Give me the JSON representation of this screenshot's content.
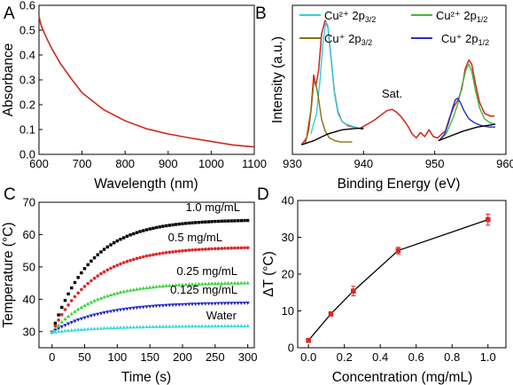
{
  "chart_data": [
    {
      "panel": "A",
      "type": "line",
      "xlabel": "Wavelength (nm)",
      "ylabel": "Absorbance",
      "xlim": [
        600,
        1100
      ],
      "ylim": [
        0.0,
        0.6
      ],
      "xticks": [
        600,
        700,
        800,
        900,
        1000,
        1100
      ],
      "yticks": [
        "0.0",
        "0.1",
        "0.2",
        "0.3",
        "0.4",
        "0.5",
        "0.6"
      ],
      "color": "#d0261c",
      "x": [
        600,
        605,
        612,
        620,
        630,
        650,
        675,
        700,
        750,
        800,
        850,
        900,
        950,
        1000,
        1050,
        1100
      ],
      "y": [
        0.555,
        0.52,
        0.49,
        0.46,
        0.425,
        0.365,
        0.305,
        0.248,
        0.18,
        0.135,
        0.103,
        0.082,
        0.066,
        0.052,
        0.038,
        0.03
      ]
    },
    {
      "panel": "B",
      "type": "line",
      "xlabel": "Binding Energy (eV)",
      "ylabel": "Intensity (a.u.)",
      "xlim": [
        930,
        960
      ],
      "xticks": [
        930,
        940,
        950,
        960
      ],
      "yticks": [],
      "legend_position": "top",
      "annotations": [
        {
          "text": "Sat.",
          "x": 944.5
        }
      ],
      "legend": [
        {
          "main": "Cu²⁺ 2p",
          "sub": "3/2",
          "color": "#2ad4dc"
        },
        {
          "main": "Cu²⁺ 2p",
          "sub": "1/2",
          "color": "#3dba3a"
        },
        {
          "main": "Cu⁺ 2p",
          "sub": "3/2",
          "color": "#8a6e10"
        },
        {
          "main": "Cu⁺ 2p",
          "sub": "1/2",
          "color": "#2330c8"
        }
      ],
      "curves": [
        {
          "role": "measured",
          "color": "#d0261c",
          "x": [
            931.3,
            932.0,
            932.6,
            933.0,
            933.3,
            933.7,
            934.1,
            934.6,
            935.0,
            935.4,
            935.9,
            936.4,
            937.0,
            937.8,
            938.6,
            939.5,
            940.5,
            941.5,
            942.5,
            943.3,
            944.0,
            944.6,
            945.2,
            945.8,
            946.3,
            946.8,
            947.4,
            948.0,
            948.6,
            949.2,
            949.8,
            950.4,
            951.0,
            951.5,
            952.1,
            952.7,
            953.3,
            953.8,
            954.3,
            954.8,
            955.2,
            955.7,
            956.3,
            957.0,
            957.8,
            958.4
          ],
          "y": [
            0.07,
            0.12,
            0.32,
            0.58,
            0.5,
            0.62,
            0.88,
            0.98,
            0.93,
            0.72,
            0.46,
            0.31,
            0.24,
            0.21,
            0.2,
            0.19,
            0.22,
            0.25,
            0.29,
            0.32,
            0.33,
            0.31,
            0.28,
            0.24,
            0.2,
            0.15,
            0.12,
            0.16,
            0.13,
            0.18,
            0.13,
            0.12,
            0.15,
            0.17,
            0.27,
            0.35,
            0.4,
            0.48,
            0.63,
            0.69,
            0.66,
            0.52,
            0.38,
            0.3,
            0.28,
            0.28
          ]
        },
        {
          "role": "Cu2+ 2p3/2",
          "color": "#2ad4dc",
          "x": [
            932.6,
            933.4,
            933.9,
            934.3,
            934.7,
            935.0,
            935.4,
            935.9,
            936.4,
            937.0,
            937.6,
            938.2,
            938.8,
            939.4,
            940.0
          ],
          "y": [
            0.15,
            0.3,
            0.55,
            0.82,
            0.97,
            0.94,
            0.72,
            0.45,
            0.3,
            0.24,
            0.22,
            0.21,
            0.2,
            0.19,
            0.18
          ]
        },
        {
          "role": "Cu+ 2p3/2",
          "color": "#8a6e10",
          "x": [
            931.8,
            932.3,
            932.7,
            933.0,
            933.3,
            933.7,
            934.1,
            934.6,
            935.2,
            936.0,
            936.8,
            937.6,
            938.4
          ],
          "y": [
            0.08,
            0.18,
            0.36,
            0.53,
            0.52,
            0.4,
            0.26,
            0.17,
            0.12,
            0.1,
            0.09,
            0.09,
            0.09
          ]
        },
        {
          "role": "Cu2+ 2p1/2",
          "color": "#3dba3a",
          "x": [
            950.6,
            951.6,
            952.6,
            953.3,
            953.9,
            954.4,
            954.8,
            955.2,
            955.7,
            956.3,
            957.0,
            957.8,
            958.5
          ],
          "y": [
            0.1,
            0.15,
            0.27,
            0.38,
            0.52,
            0.62,
            0.66,
            0.61,
            0.47,
            0.34,
            0.26,
            0.23,
            0.22
          ]
        },
        {
          "role": "Cu+ 2p1/2",
          "color": "#2330c8",
          "x": [
            950.6,
            951.4,
            952.0,
            952.5,
            952.9,
            953.2,
            953.6,
            954.1,
            954.8,
            955.6,
            956.6,
            957.6,
            958.5
          ],
          "y": [
            0.1,
            0.15,
            0.24,
            0.34,
            0.4,
            0.41,
            0.38,
            0.32,
            0.26,
            0.23,
            0.21,
            0.2,
            0.2
          ]
        },
        {
          "role": "background",
          "color": "#000000",
          "x": [
            931.3,
            933.0,
            935.0,
            937.0,
            939.0,
            940.0
          ],
          "y": [
            0.07,
            0.1,
            0.15,
            0.18,
            0.19,
            0.19
          ]
        },
        {
          "role": "background",
          "color": "#000000",
          "x": [
            950.5,
            952.0,
            954.0,
            956.0,
            958.5
          ],
          "y": [
            0.1,
            0.13,
            0.17,
            0.2,
            0.22
          ]
        }
      ]
    },
    {
      "panel": "C",
      "type": "scatter",
      "xlabel": "Time (s)",
      "ylabel": "Temperature (°C)",
      "xlim": [
        -20,
        310
      ],
      "ylim": [
        25,
        70
      ],
      "xticks": [
        0,
        50,
        100,
        150,
        200,
        250,
        300
      ],
      "yticks": [
        30,
        40,
        50,
        60,
        70
      ],
      "series": [
        {
          "name": "1.0 mg/mL",
          "color": "#000000",
          "T0": 29.8,
          "dT": 34.8,
          "tau": 60
        },
        {
          "name": "0.5 mg/mL",
          "color": "#e02424",
          "T0": 29.8,
          "dT": 26.4,
          "tau": 65
        },
        {
          "name": "0.25 mg/mL",
          "color": "#36d236",
          "T0": 29.8,
          "dT": 15.4,
          "tau": 65
        },
        {
          "name": "0.125 mg/mL",
          "color": "#1c26c4",
          "T0": 29.8,
          "dT": 9.2,
          "tau": 75
        },
        {
          "name": "Water",
          "color": "#30d8e0",
          "T0": 29.8,
          "dT": 2.0,
          "tau": 80
        }
      ]
    },
    {
      "panel": "D",
      "type": "line",
      "xlabel": "Concentration (mg/mL)",
      "ylabel": "ΔT (°C)",
      "xlim": [
        -0.06,
        1.1
      ],
      "ylim": [
        0,
        40
      ],
      "xticks": [
        "0.0",
        "0.2",
        "0.4",
        "0.6",
        "0.8",
        "1.0"
      ],
      "yticks": [
        0,
        10,
        20,
        30,
        40
      ],
      "line_color": "#000000",
      "marker_color": "#e02424",
      "x": [
        0,
        0.125,
        0.25,
        0.5,
        1.0
      ],
      "y": [
        2.0,
        9.2,
        15.4,
        26.4,
        34.8
      ],
      "err": [
        0.4,
        0.6,
        1.3,
        0.9,
        1.5
      ]
    }
  ]
}
